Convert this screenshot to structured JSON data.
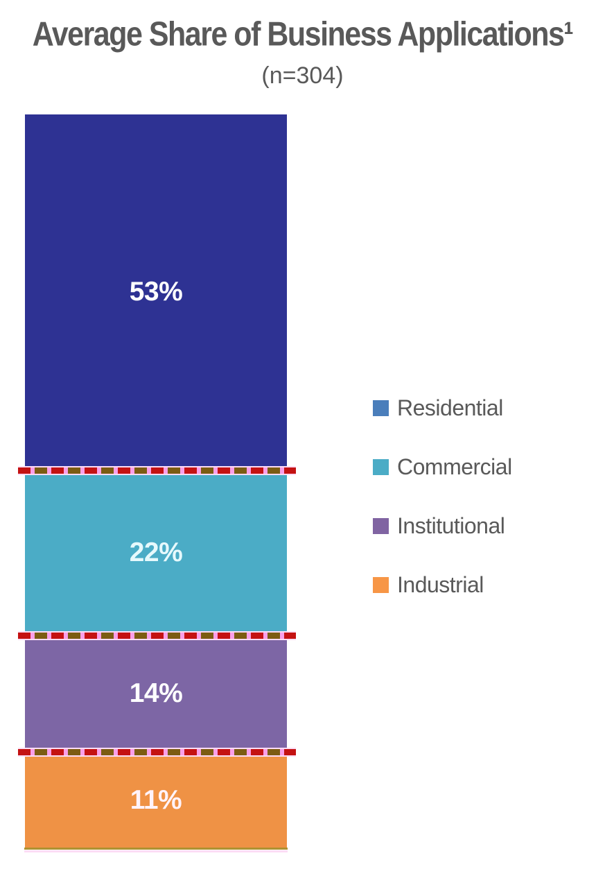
{
  "header": {
    "title": "Average Share of Business Applications¹",
    "subtitle": "(n=304)",
    "title_color": "#595959"
  },
  "chart_data": {
    "type": "bar",
    "stacked": true,
    "orientation": "vertical",
    "title": "Average Share of Business Applications¹",
    "subtitle": "(n=304)",
    "sample_size": 304,
    "categories": [
      "Average share of business applications"
    ],
    "series": [
      {
        "name": "Residential",
        "value": 53,
        "label": "53%",
        "bar_color": "#2E3293",
        "legend_color": "#4A7EBB",
        "label_color": "#FFFFFF"
      },
      {
        "name": "Commercial",
        "value": 22,
        "label": "22%",
        "bar_color": "#4BACC6",
        "legend_color": "#4BACC6",
        "label_color": "#E6F9FC"
      },
      {
        "name": "Institutional",
        "value": 14,
        "label": "14%",
        "bar_color": "#7D66A5",
        "legend_color": "#8064A2",
        "label_color": "#FFFFFF"
      },
      {
        "name": "Industrial",
        "value": 11,
        "label": "11%",
        "bar_color": "#EF9245",
        "legend_color": "#F79646",
        "label_color": "#FFF3FA"
      }
    ],
    "value_unit": "%",
    "ylim": [
      0,
      100
    ],
    "grid": false,
    "legend_position": "right",
    "legend": [
      "Residential",
      "Commercial",
      "Institutional",
      "Industrial"
    ],
    "divider_line": {
      "style": "dashed",
      "dash_colors": [
        "#C41212",
        "#7C5C12"
      ],
      "gap_color": "#F99FE8",
      "halo_color": "#FCDCF5",
      "bottom_edge_color": "#AE9232"
    }
  },
  "colors": {
    "background": "#FFFFFF",
    "legend_text": "#595959",
    "title_text": "#595959"
  }
}
